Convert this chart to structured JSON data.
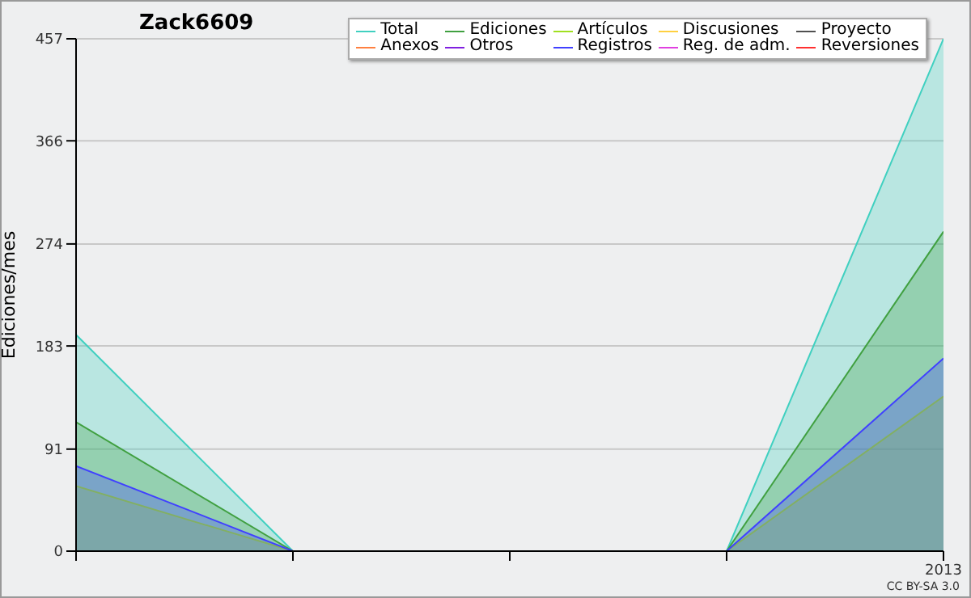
{
  "chart_data": {
    "type": "area",
    "title": "Zack6609",
    "ylabel": "Ediciones/mes",
    "categories": [
      null,
      null,
      null,
      null,
      "2013"
    ],
    "series": [
      {
        "name": "Total",
        "color": "#40d0c0",
        "values": [
          193,
          0,
          0,
          0,
          457
        ]
      },
      {
        "name": "Ediciones",
        "color": "#40a040",
        "values": [
          115,
          0,
          0,
          0,
          285
        ]
      },
      {
        "name": "Artículos",
        "color": "#a0e020",
        "values": [
          58,
          0,
          0,
          0,
          138
        ]
      },
      {
        "name": "Discusiones",
        "color": "#ffd040",
        "values": [
          null,
          null,
          null,
          null,
          null
        ]
      },
      {
        "name": "Proyecto",
        "color": "#505050",
        "values": [
          null,
          null,
          null,
          null,
          null
        ]
      },
      {
        "name": "Anexos",
        "color": "#ff8040",
        "values": [
          null,
          null,
          null,
          null,
          null
        ]
      },
      {
        "name": "Otros",
        "color": "#8020e0",
        "values": [
          null,
          null,
          null,
          null,
          null
        ]
      },
      {
        "name": "Registros",
        "color": "#4040ff",
        "values": [
          76,
          0,
          0,
          0,
          172
        ]
      },
      {
        "name": "Reg. de adm.",
        "color": "#e040e0",
        "values": [
          null,
          null,
          null,
          null,
          null
        ]
      },
      {
        "name": "Reversiones",
        "color": "#ff3030",
        "values": [
          null,
          null,
          null,
          null,
          null
        ]
      }
    ],
    "ylim": [
      0,
      457
    ],
    "yticks": [
      0,
      91,
      183,
      274,
      366,
      457
    ],
    "grid": "y",
    "legend": "top right",
    "annotations": [
      "CC BY-SA 3.0"
    ]
  }
}
